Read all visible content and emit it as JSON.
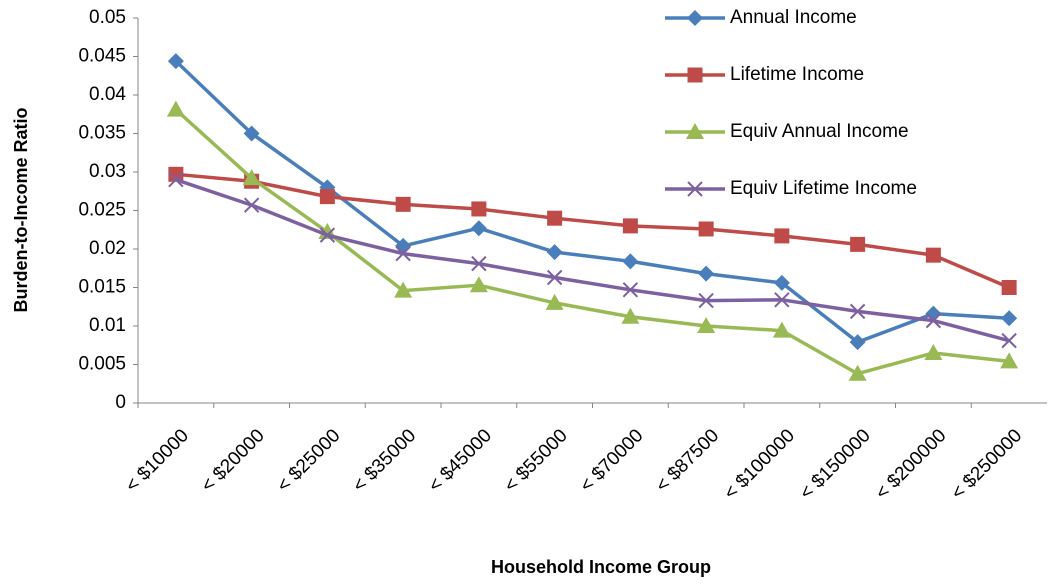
{
  "chart_data": {
    "type": "line",
    "x_label": "Household Income Group",
    "y_label": "Burden-to-Income Ratio",
    "categories": [
      "< $10000",
      "< $20000",
      "< $25000",
      "< $35000",
      "< $45000",
      "< $55000",
      "< $70000",
      "< $87500",
      "< $100000",
      "< $150000",
      "< $200000",
      "< $250000"
    ],
    "series": [
      {
        "name": "Annual Income",
        "color": "#4a7ebb",
        "marker": "diamond",
        "values": [
          0.0444,
          0.035,
          0.028,
          0.0204,
          0.0227,
          0.0196,
          0.0184,
          0.0168,
          0.0156,
          0.0079,
          0.0116,
          0.011
        ]
      },
      {
        "name": "Lifetime Income",
        "color": "#be4b48",
        "marker": "square",
        "values": [
          0.0297,
          0.0288,
          0.0268,
          0.0258,
          0.0252,
          0.024,
          0.023,
          0.0226,
          0.0217,
          0.0206,
          0.0192,
          0.015
        ]
      },
      {
        "name": "Equiv Annual Income",
        "color": "#98b954",
        "marker": "triangle",
        "values": [
          0.0381,
          0.0292,
          0.0222,
          0.0146,
          0.0153,
          0.013,
          0.0112,
          0.01,
          0.0094,
          0.0038,
          0.0065,
          0.0054
        ]
      },
      {
        "name": "Equiv Lifetime Income",
        "color": "#7d60a0",
        "marker": "x",
        "values": [
          0.029,
          0.0257,
          0.0218,
          0.0194,
          0.0181,
          0.0163,
          0.0147,
          0.0133,
          0.0134,
          0.0119,
          0.0107,
          0.0081
        ]
      }
    ],
    "ylim": [
      0,
      0.05
    ],
    "yticks": [
      0,
      0.005,
      0.01,
      0.015,
      0.02,
      0.025,
      0.03,
      0.035,
      0.04,
      0.045,
      0.05
    ],
    "grid": false,
    "legend": "top-right"
  }
}
